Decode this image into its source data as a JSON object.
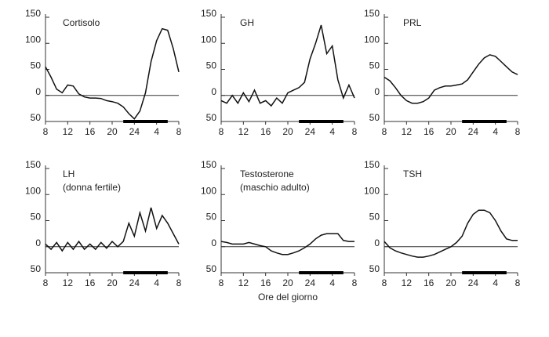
{
  "chart_data": [
    {
      "type": "line",
      "title": "Cortisolo",
      "x": [
        8,
        9,
        10,
        11,
        12,
        13,
        14,
        15,
        16,
        17,
        18,
        19,
        20,
        21,
        22,
        23,
        24,
        25,
        26,
        27,
        28,
        29,
        30,
        31,
        32
      ],
      "series": [
        {
          "color": "#111111",
          "values": [
            55,
            35,
            12,
            5,
            20,
            18,
            3,
            -3,
            -5,
            -5,
            -6,
            -10,
            -12,
            -15,
            -22,
            -35,
            -45,
            -30,
            5,
            65,
            105,
            128,
            125,
            90,
            45
          ]
        }
      ],
      "xlim": [
        8,
        32
      ],
      "xticks": [
        8,
        12,
        16,
        20,
        24,
        {
          "value": 28,
          "label": "4"
        },
        {
          "value": 32,
          "label": "8"
        }
      ],
      "ylim": [
        -50,
        150
      ],
      "yticks": [
        {
          "value": -50,
          "label": "50"
        },
        0,
        50,
        100,
        150
      ],
      "shaded_range": [
        22,
        30
      ]
    },
    {
      "type": "line",
      "title": "GH",
      "x": [
        8,
        9,
        10,
        11,
        12,
        13,
        14,
        15,
        16,
        17,
        18,
        19,
        20,
        21,
        22,
        23,
        24,
        25,
        26,
        27,
        28,
        29,
        30,
        31,
        32
      ],
      "series": [
        {
          "color": "#111111",
          "values": [
            -10,
            -15,
            0,
            -15,
            5,
            -12,
            10,
            -15,
            -10,
            -20,
            -5,
            -15,
            5,
            10,
            15,
            25,
            70,
            100,
            135,
            80,
            95,
            30,
            -5,
            20,
            -5
          ]
        }
      ],
      "xlim": [
        8,
        32
      ],
      "xticks": [
        8,
        12,
        16,
        20,
        24,
        {
          "value": 28,
          "label": "4"
        },
        {
          "value": 32,
          "label": "8"
        }
      ],
      "ylim": [
        -50,
        150
      ],
      "yticks": [
        {
          "value": -50,
          "label": "50"
        },
        0,
        50,
        100,
        150
      ],
      "shaded_range": [
        22,
        30
      ]
    },
    {
      "type": "line",
      "title": "PRL",
      "x": [
        8,
        9,
        10,
        11,
        12,
        13,
        14,
        15,
        16,
        17,
        18,
        19,
        20,
        21,
        22,
        23,
        24,
        25,
        26,
        27,
        28,
        29,
        30,
        31,
        32
      ],
      "series": [
        {
          "color": "#111111",
          "values": [
            35,
            28,
            15,
            0,
            -10,
            -15,
            -15,
            -12,
            -5,
            10,
            15,
            18,
            18,
            20,
            22,
            30,
            45,
            60,
            72,
            78,
            75,
            65,
            55,
            45,
            40
          ]
        }
      ],
      "xlim": [
        8,
        32
      ],
      "xticks": [
        8,
        12,
        16,
        20,
        24,
        {
          "value": 28,
          "label": "4"
        },
        {
          "value": 32,
          "label": "8"
        }
      ],
      "ylim": [
        -50,
        150
      ],
      "yticks": [
        {
          "value": -50,
          "label": "50"
        },
        0,
        50,
        100,
        150
      ],
      "shaded_range": [
        22,
        30
      ]
    },
    {
      "type": "line",
      "title": "LH",
      "subtitle": "(donna fertile)",
      "x": [
        8,
        9,
        10,
        11,
        12,
        13,
        14,
        15,
        16,
        17,
        18,
        19,
        20,
        21,
        22,
        23,
        24,
        25,
        26,
        27,
        28,
        29,
        30,
        31,
        32
      ],
      "series": [
        {
          "color": "#111111",
          "values": [
            5,
            -5,
            8,
            -8,
            8,
            -5,
            10,
            -5,
            5,
            -5,
            8,
            -3,
            10,
            0,
            10,
            45,
            20,
            65,
            30,
            75,
            35,
            60,
            45,
            25,
            5
          ]
        }
      ],
      "xlim": [
        8,
        32
      ],
      "xticks": [
        8,
        12,
        16,
        20,
        24,
        {
          "value": 28,
          "label": "4"
        },
        {
          "value": 32,
          "label": "8"
        }
      ],
      "ylim": [
        -50,
        150
      ],
      "yticks": [
        {
          "value": -50,
          "label": "50"
        },
        0,
        50,
        100,
        150
      ],
      "shaded_range": [
        22,
        30
      ]
    },
    {
      "type": "line",
      "title": "Testosterone",
      "subtitle": "(maschio adulto)",
      "xlabel": "Ore del giorno",
      "x": [
        8,
        9,
        10,
        11,
        12,
        13,
        14,
        15,
        16,
        17,
        18,
        19,
        20,
        21,
        22,
        23,
        24,
        25,
        26,
        27,
        28,
        29,
        30,
        31,
        32
      ],
      "series": [
        {
          "color": "#111111",
          "values": [
            10,
            8,
            5,
            5,
            5,
            8,
            5,
            2,
            0,
            -8,
            -12,
            -15,
            -15,
            -12,
            -8,
            -2,
            5,
            15,
            22,
            25,
            25,
            25,
            12,
            10,
            10
          ]
        }
      ],
      "xlim": [
        8,
        32
      ],
      "xticks": [
        8,
        12,
        16,
        20,
        24,
        {
          "value": 28,
          "label": "4"
        },
        {
          "value": 32,
          "label": "8"
        }
      ],
      "ylim": [
        -50,
        150
      ],
      "yticks": [
        {
          "value": -50,
          "label": "50"
        },
        0,
        50,
        100,
        150
      ],
      "shaded_range": [
        22,
        30
      ]
    },
    {
      "type": "line",
      "title": "TSH",
      "x": [
        8,
        9,
        10,
        11,
        12,
        13,
        14,
        15,
        16,
        17,
        18,
        19,
        20,
        21,
        22,
        23,
        24,
        25,
        26,
        27,
        28,
        29,
        30,
        31,
        32
      ],
      "series": [
        {
          "color": "#111111",
          "values": [
            10,
            -2,
            -8,
            -12,
            -15,
            -18,
            -20,
            -20,
            -18,
            -15,
            -10,
            -5,
            0,
            8,
            20,
            45,
            62,
            70,
            70,
            65,
            50,
            30,
            15,
            12,
            12
          ]
        }
      ],
      "xlim": [
        8,
        32
      ],
      "xticks": [
        8,
        12,
        16,
        20,
        24,
        {
          "value": 28,
          "label": "4"
        },
        {
          "value": 32,
          "label": "8"
        }
      ],
      "ylim": [
        -50,
        150
      ],
      "yticks": [
        {
          "value": -50,
          "label": "50"
        },
        0,
        50,
        100,
        150
      ],
      "shaded_range": [
        22,
        30
      ]
    }
  ]
}
